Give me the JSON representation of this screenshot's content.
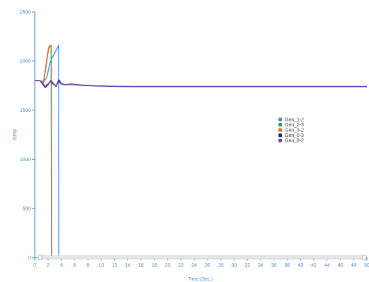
{
  "chart_data": {
    "type": "line",
    "xlabel": "Time (Sec.)",
    "ylabel": "RPM",
    "xlim": [
      0,
      50
    ],
    "ylim": [
      0,
      2500
    ],
    "xticks": [
      0,
      2,
      4,
      6,
      8,
      10,
      12,
      14,
      16,
      18,
      20,
      22,
      24,
      26,
      28,
      30,
      32,
      34,
      36,
      38,
      40,
      42,
      44,
      46,
      48,
      50
    ],
    "yticks": [
      0,
      500,
      1000,
      1500,
      2000,
      2500
    ],
    "legend_position": "right-middle",
    "grid": false,
    "series": [
      {
        "name": "Gen_1-2",
        "color": "#3c8fd6",
        "x": [
          0,
          0.8,
          1.3,
          1.8,
          2.2,
          2.5,
          3.0,
          3.6,
          3.62,
          3.7,
          50
        ],
        "y": [
          1800,
          1800,
          1790,
          1830,
          1960,
          2020,
          2080,
          2160,
          0,
          0,
          0
        ]
      },
      {
        "name": "Gen_2-3",
        "color": "#2f9a4c",
        "x": [
          0,
          0.8,
          1.3,
          1.6,
          1.9,
          2.1,
          2.3,
          2.45,
          2.5,
          50
        ],
        "y": [
          1800,
          1800,
          1780,
          1900,
          2050,
          2130,
          2150,
          2160,
          0,
          0
        ]
      },
      {
        "name": "Gen_3-2",
        "color": "#e0731c",
        "x": [
          0,
          0.8,
          1.3,
          1.6,
          1.9,
          2.1,
          2.3,
          2.5,
          2.55,
          50
        ],
        "y": [
          1800,
          1800,
          1790,
          1920,
          2070,
          2140,
          2160,
          2150,
          0,
          0
        ]
      },
      {
        "name": "Gen_6-3",
        "color": "#1a237e",
        "x": [
          0,
          0.8,
          1.2,
          1.6,
          2.0,
          2.4,
          2.8,
          3.2,
          3.6,
          4.0,
          4.5,
          5.5,
          7,
          9,
          12,
          15,
          20,
          50
        ],
        "y": [
          1800,
          1800,
          1760,
          1730,
          1760,
          1800,
          1770,
          1740,
          1810,
          1770,
          1760,
          1765,
          1755,
          1748,
          1742,
          1740,
          1740,
          1740
        ]
      },
      {
        "name": "Gen_8-2",
        "color": "#7b3fa3",
        "x": [
          0,
          0.8,
          1.2,
          1.6,
          2.0,
          2.4,
          2.8,
          3.2,
          3.6,
          4.0,
          4.5,
          5.5,
          7,
          9,
          12,
          15,
          20,
          50
        ],
        "y": [
          1800,
          1800,
          1770,
          1740,
          1770,
          1790,
          1760,
          1750,
          1790,
          1765,
          1758,
          1762,
          1752,
          1746,
          1741,
          1740,
          1740,
          1740
        ]
      }
    ]
  }
}
